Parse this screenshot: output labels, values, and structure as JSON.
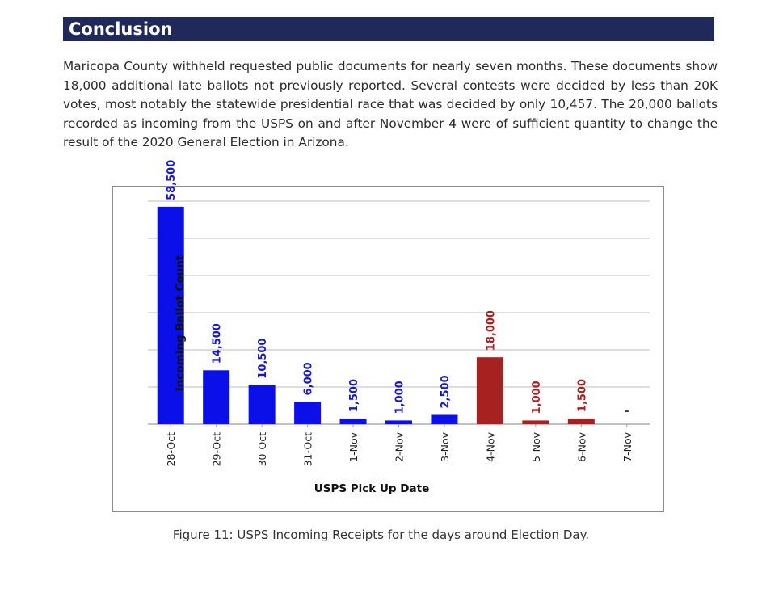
{
  "section": {
    "title": "Conclusion"
  },
  "paragraph": "Maricopa County withheld requested public documents for nearly seven months.  These documents show 18,000 additional late ballots not previously reported.  Several contests were decided by less than 20K votes, most notably the statewide presidential race that was decided by only 10,457.  The 20,000 ballots recorded as incoming from the USPS on and after November 4 were of sufficient quantity to change the result of the 2020 General Election in Arizona.",
  "chart_data": {
    "type": "bar",
    "xlabel": "USPS Pick Up Date",
    "ylabel": "Incoming Ballot Count",
    "categories": [
      "28-Oct",
      "29-Oct",
      "30-Oct",
      "31-Oct",
      "1-Nov",
      "2-Nov",
      "3-Nov",
      "4-Nov",
      "5-Nov",
      "6-Nov",
      "7-Nov"
    ],
    "values": [
      58500,
      14500,
      10500,
      6000,
      1500,
      1000,
      2500,
      18000,
      1000,
      1500,
      0
    ],
    "data_labels": [
      "58,500",
      "14,500",
      "10,500",
      "6,000",
      "1,500",
      "1,000",
      "2,500",
      "18,000",
      "1,000",
      "1,500",
      "-"
    ],
    "bar_colors": [
      "#0b10e8",
      "#0b10e8",
      "#0b10e8",
      "#0b10e8",
      "#0b10e8",
      "#0b10e8",
      "#0b10e8",
      "#a6211f",
      "#a6211f",
      "#a6211f",
      "#a6211f"
    ],
    "label_colors": [
      "#1515d8",
      "#1515d8",
      "#1515d8",
      "#1515d8",
      "#1515d8",
      "#1515d8",
      "#1515d8",
      "#a6211f",
      "#a6211f",
      "#a6211f",
      "#333333"
    ],
    "ylim": [
      0,
      60000
    ],
    "grid_step": 10000,
    "grid": true,
    "legend": "none"
  },
  "caption": "Figure 11: USPS Incoming Receipts for the days around Election Day."
}
